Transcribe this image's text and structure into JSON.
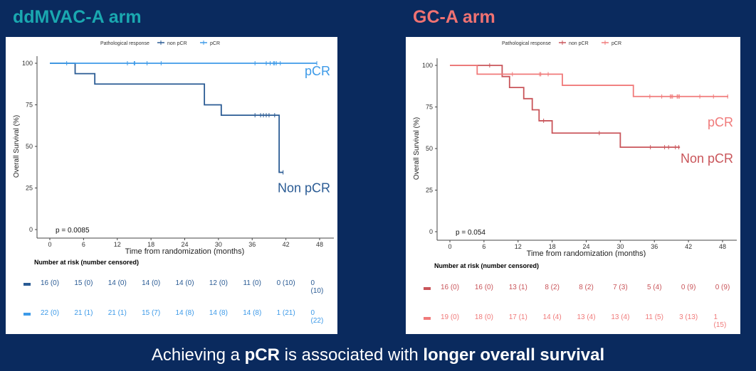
{
  "chart_data": [
    {
      "type": "line",
      "arm_title": "ddMVAC-A arm",
      "title_color": "#1aa8b0",
      "legend_title": "Pathological response",
      "legend": [
        "non pCR",
        "pCR"
      ],
      "legend_position": "top",
      "xlabel": "Time from randomization (months)",
      "ylabel": "Overall Survival (%)",
      "xlim": [
        0,
        48
      ],
      "ylim": [
        0,
        100
      ],
      "xticks": [
        0,
        6,
        12,
        18,
        24,
        30,
        36,
        42,
        48
      ],
      "yticks": [
        0,
        25,
        50,
        75,
        100
      ],
      "p_value": "p = 0.0085",
      "series": [
        {
          "name": "non pCR",
          "label": "Non pCR",
          "color": "#2a5b94",
          "steps": [
            [
              0,
              100
            ],
            [
              4.5,
              93.75
            ],
            [
              8,
              87.5
            ],
            [
              27.5,
              75
            ],
            [
              30.5,
              68.75
            ],
            [
              40.8,
              34.4
            ]
          ],
          "end": 41.5,
          "censors": [
            36.5,
            37.5,
            38,
            38.5,
            39,
            40,
            41.5
          ]
        },
        {
          "name": "pCR",
          "label": "pCR",
          "color": "#3d9ae8",
          "steps": [
            [
              0,
              100
            ]
          ],
          "end": 47.5,
          "censors": [
            3,
            13.8,
            15,
            15.1,
            17.3,
            19.8,
            36.5,
            38.5,
            39.2,
            39.8,
            40,
            40.3,
            41,
            47.5
          ]
        }
      ],
      "risk_title": "Number at risk (number censored)",
      "risk": [
        [
          "16 (0)",
          "15 (0)",
          "14 (0)",
          "14 (0)",
          "14 (0)",
          "12 (0)",
          "11 (0)",
          "0 (10)",
          "0 (10)"
        ],
        [
          "22 (0)",
          "21 (1)",
          "21 (1)",
          "15 (7)",
          "14 (8)",
          "14 (8)",
          "14 (8)",
          "1 (21)",
          "0 (22)"
        ]
      ]
    },
    {
      "type": "line",
      "arm_title": "GC-A arm",
      "title_color": "#f07272",
      "legend_title": "Pathological response",
      "legend": [
        "non pCR",
        "pCR"
      ],
      "legend_position": "top",
      "xlabel": "Time from randomization (months)",
      "ylabel": "Overall Survival (%)",
      "xlim": [
        0,
        48
      ],
      "ylim": [
        0,
        100
      ],
      "xticks": [
        0,
        6,
        12,
        18,
        24,
        30,
        36,
        42,
        48
      ],
      "yticks": [
        0,
        25,
        50,
        75,
        100
      ],
      "p_value": "p = 0.054",
      "series": [
        {
          "name": "non pCR",
          "label": "Non pCR",
          "color": "#c9555a",
          "steps": [
            [
              0,
              100
            ],
            [
              9.2,
              93.3
            ],
            [
              10.5,
              86.7
            ],
            [
              13,
              80
            ],
            [
              14.5,
              73.3
            ],
            [
              15.7,
              66.7
            ],
            [
              18,
              59.3
            ],
            [
              30,
              50.8
            ]
          ],
          "end": 40.5,
          "censors": [
            7,
            16.5,
            26.3,
            35.3,
            37.8,
            38.5,
            39.7,
            40.3
          ]
        },
        {
          "name": "pCR",
          "label": "pCR",
          "color": "#f07a7a",
          "steps": [
            [
              0,
              100
            ],
            [
              4.8,
              94.7
            ],
            [
              19.8,
              88
            ],
            [
              32.3,
              81.3
            ]
          ],
          "end": 49,
          "censors": [
            11,
            15.8,
            16,
            17.3,
            35.2,
            37.3,
            38.8,
            39,
            39.2,
            40,
            40.2,
            40.4,
            44,
            46.4,
            48.9
          ]
        }
      ],
      "risk_title": "Number at risk (number censored)",
      "risk": [
        [
          "16 (0)",
          "16 (0)",
          "13 (1)",
          "8 (2)",
          "8 (2)",
          "7 (3)",
          "5 (4)",
          "0 (9)",
          "0 (9)"
        ],
        [
          "19 (0)",
          "18 (0)",
          "17 (1)",
          "14 (4)",
          "13 (4)",
          "13 (4)",
          "11 (5)",
          "3 (13)",
          "1 (15)"
        ]
      ]
    }
  ],
  "footer": {
    "pre": "Achieving a ",
    "b1": "pCR",
    "mid": " is associated with ",
    "b2": "longer overall survival"
  }
}
